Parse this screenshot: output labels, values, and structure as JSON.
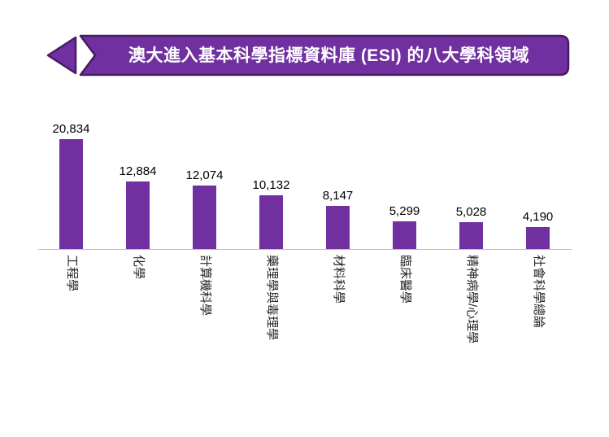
{
  "banner": {
    "title": "澳大進入基本科學指標資料庫 (ESI) 的八大學科領域"
  },
  "colors": {
    "bar": "#7030A0",
    "banner_fill": "#7030A0",
    "banner_border": "#471A63",
    "axis_line": "#BFBFBF",
    "title_text": "#FFFFFF",
    "value_label": "#000000",
    "category_label": "#262626"
  },
  "chart_data": {
    "type": "bar",
    "title": "澳大進入基本科學指標資料庫 (ESI) 的八大學科領域",
    "categories": [
      "工程學",
      "化學",
      "計算機科學",
      "藥理學與毒理學",
      "材料科學",
      "臨床醫學",
      "精神病學/心理學",
      "社會科學總論"
    ],
    "values": [
      20834,
      12884,
      12074,
      10132,
      8147,
      5299,
      5028,
      4190
    ],
    "value_labels": [
      "20,834",
      "12,884",
      "12,074",
      "10,132",
      "8,147",
      "5,299",
      "5,028",
      "4,190"
    ],
    "xlabel": "",
    "ylabel": "",
    "ylim": [
      0,
      21000
    ],
    "grid": false,
    "legend": "none",
    "bar_color": "#7030A0",
    "value_labels_shown": true,
    "category_label_rotation_deg": 90
  }
}
